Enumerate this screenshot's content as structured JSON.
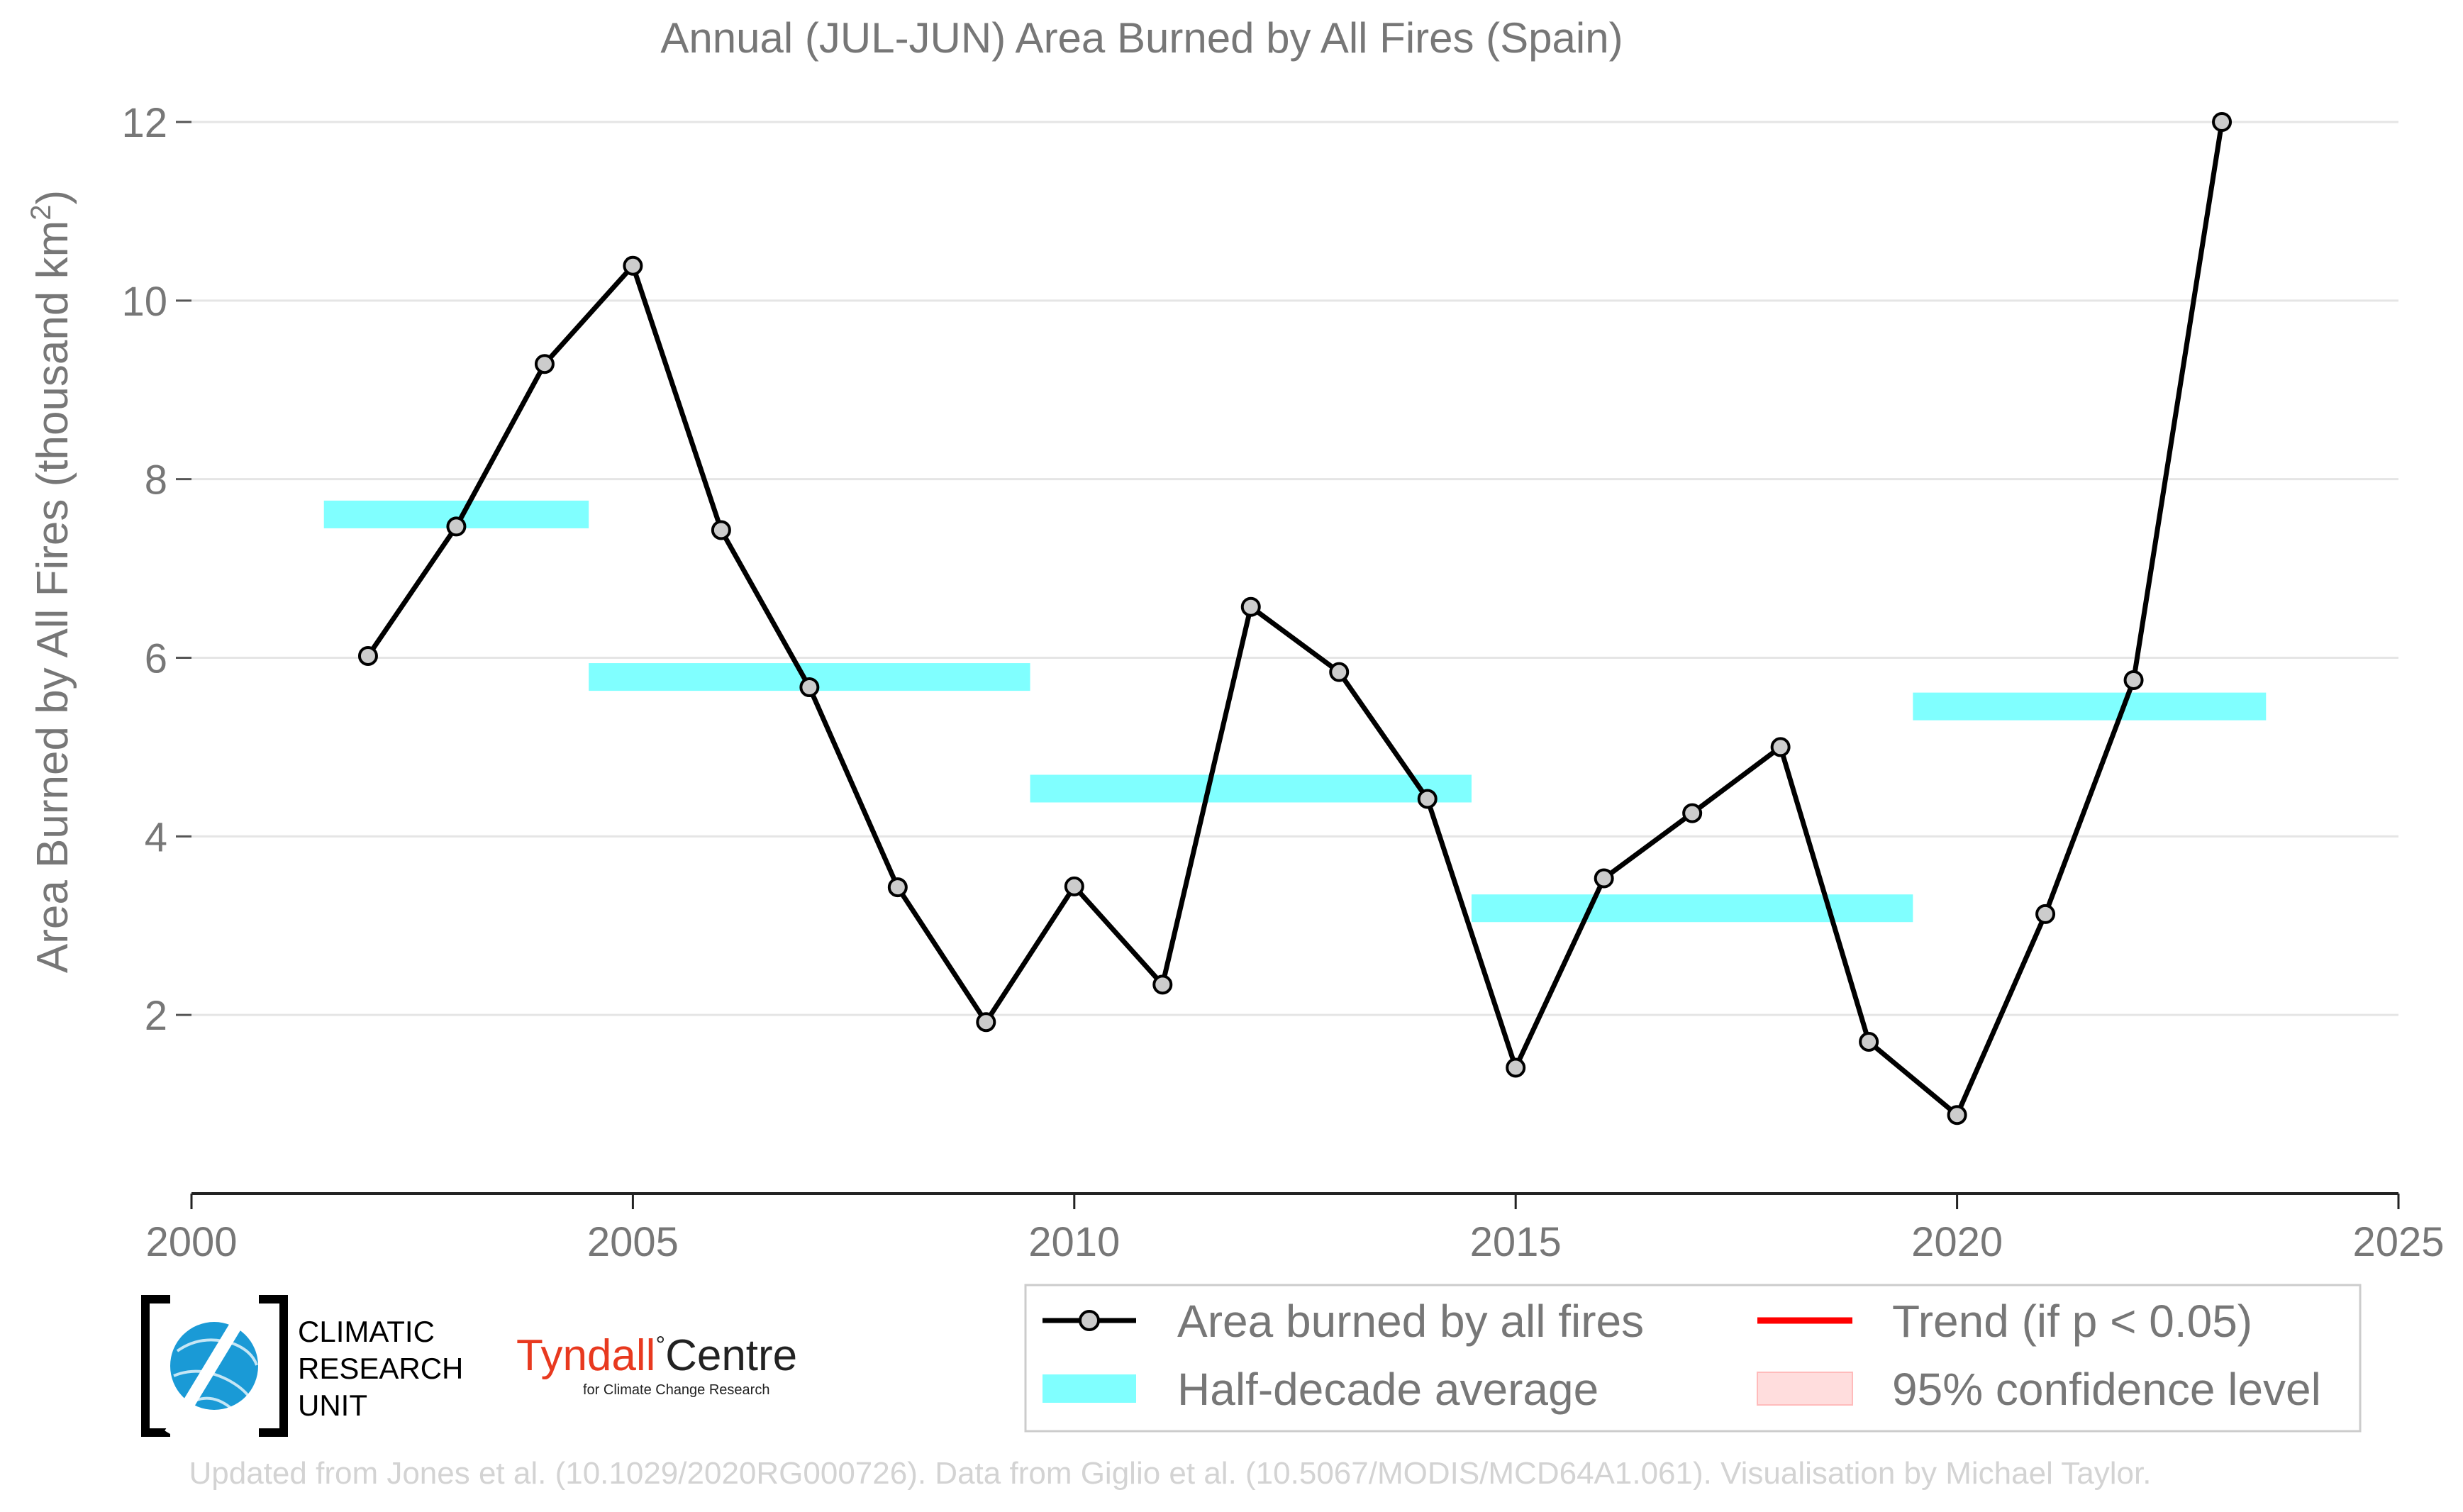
{
  "title": "Annual (JUL-JUN) Area Burned by All Fires (Spain)",
  "credit": "Updated from Jones et al. (10.1029/2020RG000726). Data from Giglio et al. (10.5067/MODIS/MCD64A1.061). Visualisation by Michael Taylor.",
  "logos": {
    "cru_line1": "CLIMATIC",
    "cru_line2": "RESEARCH",
    "cru_line3": "UNIT",
    "tyndall_word": "Tyndall",
    "tyndall_centre": "Centre",
    "tyndall_sub": "for Climate Change Research"
  },
  "legend": {
    "line_label": "Area burned by all fires",
    "avg_label": "Half-decade average",
    "trend_label": "Trend (if p < 0.05)",
    "ci_label": "95% confidence level"
  },
  "colors": {
    "line": "#000000",
    "marker_fill": "#cccccc",
    "half_decade": "#80ffff",
    "trend": "#ff0000",
    "confidence": "#ffdddd",
    "grid": "#e5e5e5",
    "text": "#777777",
    "cru_blue": "#1a9ad6",
    "tyndall_red": "#e8391f"
  },
  "chart_data": {
    "type": "line",
    "title": "Annual (JUL-JUN) Area Burned by All Fires (Spain)",
    "xlabel": "",
    "ylabel": "Area Burned by All Fires (thousand km²)",
    "ylabel_main": "Area Burned by All Fires (thousand km",
    "ylabel_sup": "2",
    "ylabel_close": ")",
    "xlim": [
      2000,
      2025
    ],
    "ylim": [
      0,
      12
    ],
    "xticks": [
      2000,
      2005,
      2010,
      2015,
      2020,
      2025
    ],
    "yticks": [
      2,
      4,
      6,
      8,
      10,
      12
    ],
    "grid": "horizontal",
    "legend_position": "bottom",
    "series": [
      {
        "name": "Area burned by all fires",
        "x": [
          2002,
          2003,
          2004,
          2005,
          2006,
          2007,
          2008,
          2009,
          2010,
          2011,
          2012,
          2013,
          2014,
          2015,
          2016,
          2017,
          2018,
          2019,
          2020,
          2021,
          2022,
          2023
        ],
        "values": [
          6.02,
          7.47,
          9.29,
          10.39,
          7.43,
          5.67,
          3.43,
          1.92,
          3.44,
          2.34,
          6.57,
          5.84,
          4.42,
          1.41,
          3.53,
          4.26,
          5.0,
          1.7,
          0.88,
          3.13,
          5.75,
          12.0
        ]
      }
    ],
    "half_decade_averages": [
      {
        "x_start": 2001.5,
        "x_end": 2004.5,
        "y_low": 7.45,
        "y_high": 7.76
      },
      {
        "x_start": 2004.5,
        "x_end": 2009.5,
        "y_low": 5.63,
        "y_high": 5.94
      },
      {
        "x_start": 2009.5,
        "x_end": 2014.5,
        "y_low": 4.38,
        "y_high": 4.69
      },
      {
        "x_start": 2014.5,
        "x_end": 2019.5,
        "y_low": 3.04,
        "y_high": 3.35
      },
      {
        "x_start": 2019.5,
        "x_end": 2023.5,
        "y_low": 5.3,
        "y_high": 5.61
      }
    ]
  }
}
